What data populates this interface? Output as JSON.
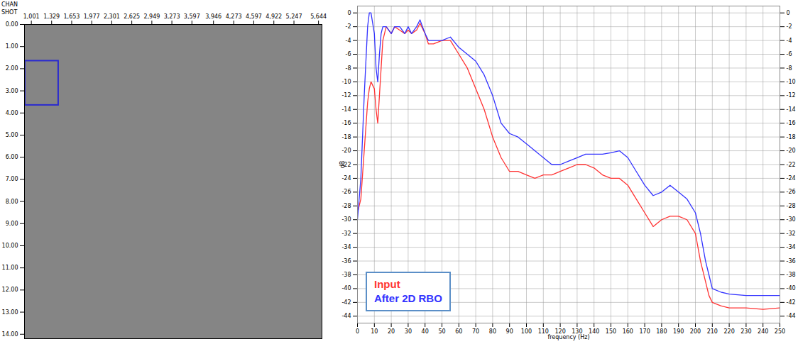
{
  "chart_data": [
    {
      "type": "image",
      "xlabel": "SHOT",
      "annotation": "CHAN",
      "color": "#858585",
      "xlim": [
        890,
        5700
      ],
      "xticks": [
        {
          "value": 1001,
          "label": "1,001"
        },
        {
          "value": 1329,
          "label": "1,329"
        },
        {
          "value": 1653,
          "label": "1,653"
        },
        {
          "value": 1977,
          "label": "1,977"
        },
        {
          "value": 2301,
          "label": "2,301"
        },
        {
          "value": 2625,
          "label": "2,625"
        },
        {
          "value": 2949,
          "label": "2,949"
        },
        {
          "value": 3273,
          "label": "3,273"
        },
        {
          "value": 3597,
          "label": "3,597"
        },
        {
          "value": 3946,
          "label": "3,946"
        },
        {
          "value": 4273,
          "label": "4,273"
        },
        {
          "value": 4597,
          "label": "4,597"
        },
        {
          "value": 4922,
          "label": "4,922"
        },
        {
          "value": 5247,
          "label": "5,247"
        },
        {
          "value": 5644,
          "label": "5,644"
        }
      ],
      "ylim": [
        0,
        14.2
      ],
      "yticks": [
        {
          "value": 0,
          "label": "0.00"
        },
        {
          "value": 1,
          "label": "1.00"
        },
        {
          "value": 2,
          "label": "2.00"
        },
        {
          "value": 3,
          "label": "3.00"
        },
        {
          "value": 4,
          "label": "4.00"
        },
        {
          "value": 5,
          "label": "5.00"
        },
        {
          "value": 6,
          "label": "6.00"
        },
        {
          "value": 7,
          "label": "7.00"
        },
        {
          "value": 8,
          "label": "8.00"
        },
        {
          "value": 9,
          "label": "9.00"
        },
        {
          "value": 10,
          "label": "10.00"
        },
        {
          "value": 11,
          "label": "11.00"
        },
        {
          "value": 12,
          "label": "12.00"
        },
        {
          "value": 13,
          "label": "13.00"
        },
        {
          "value": 14,
          "label": "14.00"
        }
      ],
      "box": {
        "x": [
          900,
          1440
        ],
        "y": [
          1.65,
          3.65
        ],
        "color": "#2a2ad0"
      }
    },
    {
      "type": "line",
      "xlabel": "frequency (Hz)",
      "ylabel": "dB",
      "x": [
        0,
        2,
        4,
        6,
        7,
        8,
        10,
        11,
        12,
        13,
        14,
        15,
        17,
        20,
        22,
        25,
        28,
        30,
        32,
        35,
        37,
        40,
        42,
        45,
        50,
        55,
        60,
        65,
        70,
        75,
        80,
        85,
        90,
        95,
        100,
        105,
        110,
        115,
        120,
        125,
        130,
        135,
        140,
        145,
        150,
        155,
        160,
        165,
        170,
        175,
        180,
        185,
        190,
        195,
        200,
        203,
        206,
        208,
        210,
        215,
        220,
        230,
        240,
        250
      ],
      "series": [
        {
          "name": "Input",
          "color": "#ff3333",
          "values": [
            -29,
            -27,
            -20,
            -13,
            -11,
            -10,
            -11,
            -14,
            -16,
            -12,
            -8,
            -4,
            -2,
            -3,
            -2,
            -2.5,
            -3,
            -2.5,
            -3,
            -2.5,
            -1.5,
            -3,
            -4.5,
            -4.5,
            -4,
            -4,
            -6,
            -8,
            -11,
            -14,
            -18,
            -21,
            -23,
            -23,
            -23.5,
            -24,
            -23.5,
            -23.5,
            -23,
            -22.5,
            -22,
            -22,
            -22.5,
            -23.5,
            -24,
            -24,
            -25,
            -27,
            -29,
            -31,
            -30,
            -29.5,
            -29.5,
            -30,
            -32,
            -36,
            -39,
            -41,
            -42,
            -42.5,
            -42.8,
            -42.8,
            -43,
            -42.8
          ]
        },
        {
          "name": "After 2D RBO",
          "color": "#3333ff",
          "values": [
            -30,
            -24,
            -12,
            -2,
            0,
            0,
            -3,
            -8,
            -10,
            -6,
            -3,
            -2,
            -2,
            -3,
            -2,
            -2,
            -3,
            -2,
            -3,
            -2,
            -1,
            -3,
            -4,
            -4,
            -4,
            -3.5,
            -5,
            -6,
            -7,
            -9,
            -12,
            -16,
            -17.5,
            -18,
            -19,
            -20,
            -21,
            -22,
            -22,
            -21.5,
            -21,
            -20.5,
            -20.5,
            -20.5,
            -20.3,
            -20,
            -21,
            -23,
            -25,
            -26.5,
            -26,
            -25,
            -26,
            -27,
            -29,
            -32,
            -36,
            -38,
            -40,
            -40.5,
            -40.8,
            -41,
            -41,
            -41
          ]
        }
      ],
      "xlim": [
        0,
        250
      ],
      "xticks": [
        0,
        10,
        20,
        30,
        40,
        50,
        60,
        70,
        80,
        90,
        100,
        110,
        120,
        130,
        140,
        150,
        160,
        170,
        180,
        190,
        200,
        210,
        220,
        230,
        240,
        250
      ],
      "ylim": [
        -45,
        1
      ],
      "yticks": [
        0,
        -2,
        -4,
        -6,
        -8,
        -10,
        -12,
        -14,
        -16,
        -18,
        -20,
        -22,
        -24,
        -26,
        -28,
        -30,
        -32,
        -34,
        -36,
        -38,
        -40,
        -42,
        -44
      ],
      "grid": true,
      "legend": "bottom-left"
    }
  ]
}
